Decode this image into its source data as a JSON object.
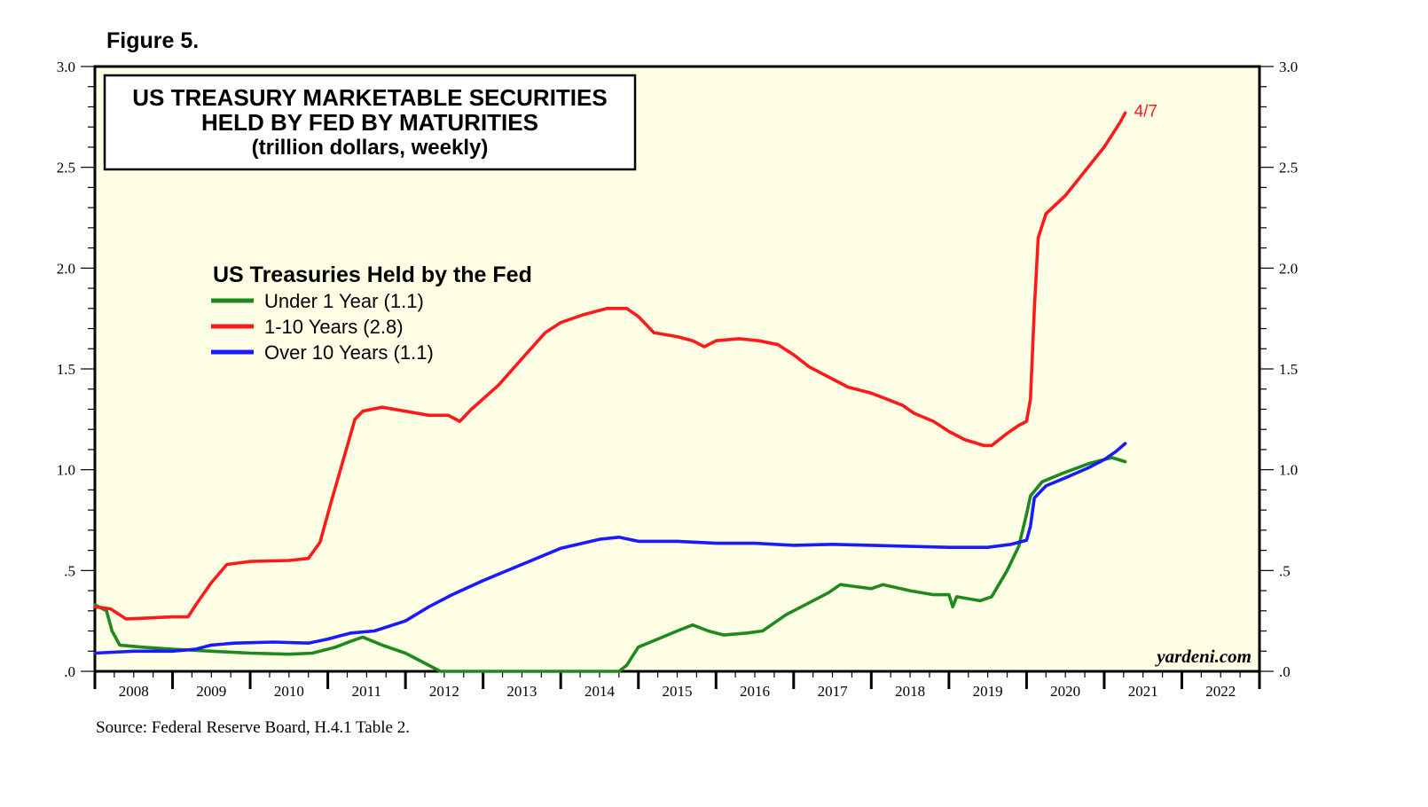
{
  "figure_label": "Figure 5.",
  "source": "Source: Federal Reserve Board, H.4.1 Table 2.",
  "watermark": "yardeni.com",
  "colors": {
    "plot_bg": "#ffffe6",
    "green": "#1e8a1e",
    "red": "#ff1a1a",
    "blue": "#1a1aff"
  },
  "chart_data": {
    "type": "line",
    "title": [
      "US TREASURY MARKETABLE SECURITIES",
      "HELD BY FED BY MATURITIES",
      "(trillion dollars, weekly)"
    ],
    "legend_title": "US Treasuries Held by the Fed",
    "legend_placement": "upper-left",
    "xlim": [
      2008,
      2023
    ],
    "x_tick_labels": [
      "2008",
      "2009",
      "2010",
      "2011",
      "2012",
      "2013",
      "2014",
      "2015",
      "2016",
      "2017",
      "2018",
      "2019",
      "2020",
      "2021",
      "2022"
    ],
    "ylim": [
      0,
      3.0
    ],
    "y_ticks": [
      0,
      0.5,
      1.0,
      1.5,
      2.0,
      2.5,
      3.0
    ],
    "y_tick_labels": [
      ".0",
      ".5",
      "1.0",
      "1.5",
      "2.0",
      "2.5",
      "3.0"
    ],
    "end_annotation": "4/7",
    "series": [
      {
        "name": "Under 1 Year (1.1)",
        "color": "#1e8a1e",
        "points": [
          [
            2008.0,
            0.33
          ],
          [
            2008.15,
            0.3
          ],
          [
            2008.22,
            0.2
          ],
          [
            2008.32,
            0.13
          ],
          [
            2008.6,
            0.12
          ],
          [
            2009.0,
            0.11
          ],
          [
            2009.5,
            0.1
          ],
          [
            2010.0,
            0.09
          ],
          [
            2010.5,
            0.085
          ],
          [
            2010.8,
            0.09
          ],
          [
            2011.1,
            0.12
          ],
          [
            2011.3,
            0.15
          ],
          [
            2011.45,
            0.17
          ],
          [
            2011.7,
            0.13
          ],
          [
            2012.0,
            0.09
          ],
          [
            2012.25,
            0.04
          ],
          [
            2012.45,
            0.0
          ],
          [
            2013.0,
            0.0
          ],
          [
            2014.0,
            0.0
          ],
          [
            2014.75,
            0.0
          ],
          [
            2014.85,
            0.03
          ],
          [
            2015.0,
            0.12
          ],
          [
            2015.25,
            0.16
          ],
          [
            2015.5,
            0.2
          ],
          [
            2015.7,
            0.23
          ],
          [
            2015.9,
            0.2
          ],
          [
            2016.1,
            0.18
          ],
          [
            2016.4,
            0.19
          ],
          [
            2016.6,
            0.2
          ],
          [
            2016.9,
            0.28
          ],
          [
            2017.2,
            0.34
          ],
          [
            2017.45,
            0.39
          ],
          [
            2017.6,
            0.43
          ],
          [
            2017.8,
            0.42
          ],
          [
            2018.0,
            0.41
          ],
          [
            2018.15,
            0.43
          ],
          [
            2018.5,
            0.4
          ],
          [
            2018.8,
            0.38
          ],
          [
            2019.0,
            0.38
          ],
          [
            2019.05,
            0.32
          ],
          [
            2019.1,
            0.37
          ],
          [
            2019.4,
            0.35
          ],
          [
            2019.55,
            0.37
          ],
          [
            2019.75,
            0.5
          ],
          [
            2019.9,
            0.62
          ],
          [
            2020.0,
            0.78
          ],
          [
            2020.05,
            0.87
          ],
          [
            2020.2,
            0.94
          ],
          [
            2020.45,
            0.98
          ],
          [
            2020.8,
            1.03
          ],
          [
            2021.0,
            1.05
          ],
          [
            2021.1,
            1.06
          ],
          [
            2021.27,
            1.04
          ]
        ]
      },
      {
        "name": "1-10 Years (2.8)",
        "color": "#ff1a1a",
        "points": [
          [
            2008.0,
            0.32
          ],
          [
            2008.2,
            0.31
          ],
          [
            2008.4,
            0.26
          ],
          [
            2008.7,
            0.265
          ],
          [
            2009.0,
            0.27
          ],
          [
            2009.2,
            0.27
          ],
          [
            2009.3,
            0.33
          ],
          [
            2009.5,
            0.44
          ],
          [
            2009.7,
            0.53
          ],
          [
            2010.0,
            0.545
          ],
          [
            2010.5,
            0.55
          ],
          [
            2010.75,
            0.56
          ],
          [
            2010.9,
            0.64
          ],
          [
            2011.05,
            0.85
          ],
          [
            2011.2,
            1.05
          ],
          [
            2011.35,
            1.25
          ],
          [
            2011.45,
            1.29
          ],
          [
            2011.7,
            1.31
          ],
          [
            2012.0,
            1.29
          ],
          [
            2012.3,
            1.27
          ],
          [
            2012.55,
            1.27
          ],
          [
            2012.7,
            1.24
          ],
          [
            2012.85,
            1.3
          ],
          [
            2013.2,
            1.42
          ],
          [
            2013.5,
            1.55
          ],
          [
            2013.8,
            1.68
          ],
          [
            2014.0,
            1.73
          ],
          [
            2014.3,
            1.77
          ],
          [
            2014.6,
            1.8
          ],
          [
            2014.85,
            1.8
          ],
          [
            2015.0,
            1.76
          ],
          [
            2015.2,
            1.68
          ],
          [
            2015.5,
            1.66
          ],
          [
            2015.7,
            1.64
          ],
          [
            2015.85,
            1.61
          ],
          [
            2016.0,
            1.64
          ],
          [
            2016.3,
            1.65
          ],
          [
            2016.55,
            1.64
          ],
          [
            2016.8,
            1.62
          ],
          [
            2017.0,
            1.57
          ],
          [
            2017.2,
            1.51
          ],
          [
            2017.5,
            1.45
          ],
          [
            2017.7,
            1.41
          ],
          [
            2018.0,
            1.38
          ],
          [
            2018.2,
            1.35
          ],
          [
            2018.4,
            1.32
          ],
          [
            2018.55,
            1.28
          ],
          [
            2018.8,
            1.24
          ],
          [
            2019.0,
            1.19
          ],
          [
            2019.2,
            1.15
          ],
          [
            2019.45,
            1.12
          ],
          [
            2019.55,
            1.12
          ],
          [
            2019.75,
            1.18
          ],
          [
            2019.9,
            1.22
          ],
          [
            2020.0,
            1.24
          ],
          [
            2020.05,
            1.35
          ],
          [
            2020.1,
            1.8
          ],
          [
            2020.15,
            2.15
          ],
          [
            2020.25,
            2.27
          ],
          [
            2020.5,
            2.36
          ],
          [
            2020.75,
            2.48
          ],
          [
            2021.0,
            2.6
          ],
          [
            2021.2,
            2.72
          ],
          [
            2021.27,
            2.77
          ]
        ]
      },
      {
        "name": "Over 10 Years (1.1)",
        "color": "#1a1aff",
        "points": [
          [
            2008.0,
            0.09
          ],
          [
            2008.5,
            0.1
          ],
          [
            2009.0,
            0.1
          ],
          [
            2009.3,
            0.11
          ],
          [
            2009.5,
            0.13
          ],
          [
            2009.8,
            0.14
          ],
          [
            2010.3,
            0.145
          ],
          [
            2010.75,
            0.14
          ],
          [
            2011.0,
            0.16
          ],
          [
            2011.3,
            0.19
          ],
          [
            2011.6,
            0.2
          ],
          [
            2012.0,
            0.25
          ],
          [
            2012.3,
            0.32
          ],
          [
            2012.6,
            0.38
          ],
          [
            2013.0,
            0.45
          ],
          [
            2013.5,
            0.53
          ],
          [
            2014.0,
            0.61
          ],
          [
            2014.5,
            0.655
          ],
          [
            2014.75,
            0.665
          ],
          [
            2015.0,
            0.645
          ],
          [
            2015.5,
            0.645
          ],
          [
            2016.0,
            0.635
          ],
          [
            2016.5,
            0.635
          ],
          [
            2017.0,
            0.625
          ],
          [
            2017.5,
            0.63
          ],
          [
            2018.0,
            0.625
          ],
          [
            2018.5,
            0.62
          ],
          [
            2019.0,
            0.615
          ],
          [
            2019.5,
            0.615
          ],
          [
            2019.8,
            0.63
          ],
          [
            2020.0,
            0.65
          ],
          [
            2020.05,
            0.72
          ],
          [
            2020.1,
            0.86
          ],
          [
            2020.25,
            0.92
          ],
          [
            2020.5,
            0.96
          ],
          [
            2020.8,
            1.01
          ],
          [
            2021.0,
            1.05
          ],
          [
            2021.15,
            1.09
          ],
          [
            2021.27,
            1.13
          ]
        ]
      }
    ]
  }
}
